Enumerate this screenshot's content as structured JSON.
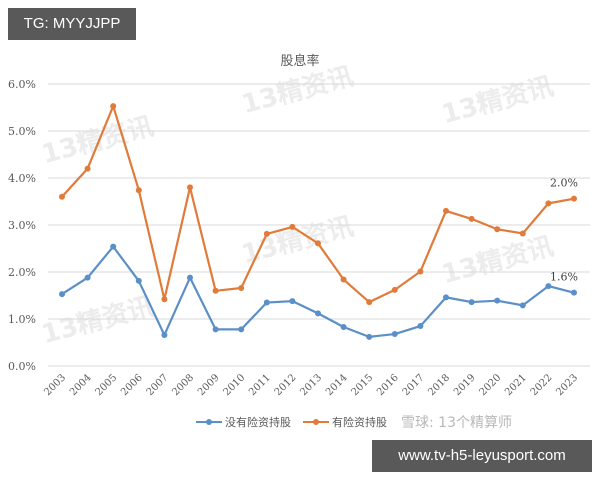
{
  "overlay": {
    "tag_label": "TG: MYYJJPP",
    "url_label": "www.tv-h5-leyusport.com",
    "watermark_source": "雪球: 13个精算师",
    "watermark_stamp": "13精资讯"
  },
  "chart_data": {
    "type": "line",
    "title": "股息率",
    "xlabel": "",
    "ylabel": "",
    "ylim": [
      0,
      6
    ],
    "yticks": [
      "0.0%",
      "1.0%",
      "2.0%",
      "3.0%",
      "4.0%",
      "5.0%",
      "6.0%"
    ],
    "grid": true,
    "legend_position": "bottom",
    "categories": [
      "2003",
      "2004",
      "2005",
      "2006",
      "2007",
      "2008",
      "2009",
      "2010",
      "2011",
      "2012",
      "2013",
      "2014",
      "2015",
      "2016",
      "2017",
      "2018",
      "2019",
      "2020",
      "2021",
      "2022",
      "2023"
    ],
    "series": [
      {
        "name": "没有险资持股",
        "color": "#5b8fc7",
        "values": [
          1.53,
          1.88,
          2.54,
          1.81,
          0.66,
          1.88,
          0.78,
          0.78,
          1.35,
          1.38,
          1.12,
          0.83,
          0.62,
          0.68,
          0.85,
          1.46,
          1.36,
          1.39,
          1.29,
          1.7,
          1.56
        ]
      },
      {
        "name": "有险资持股",
        "color": "#e07b39",
        "values": [
          3.6,
          4.2,
          5.53,
          3.74,
          1.42,
          3.8,
          1.6,
          1.66,
          2.81,
          2.96,
          2.61,
          1.84,
          1.36,
          1.62,
          2.01,
          3.3,
          3.13,
          2.91,
          2.82,
          3.46,
          3.56
        ]
      }
    ],
    "annotations": [
      {
        "series": "有险资持股",
        "category": "2023",
        "text": "2.0%"
      },
      {
        "series": "没有险资持股",
        "category": "2023",
        "text": "1.6%"
      }
    ]
  }
}
